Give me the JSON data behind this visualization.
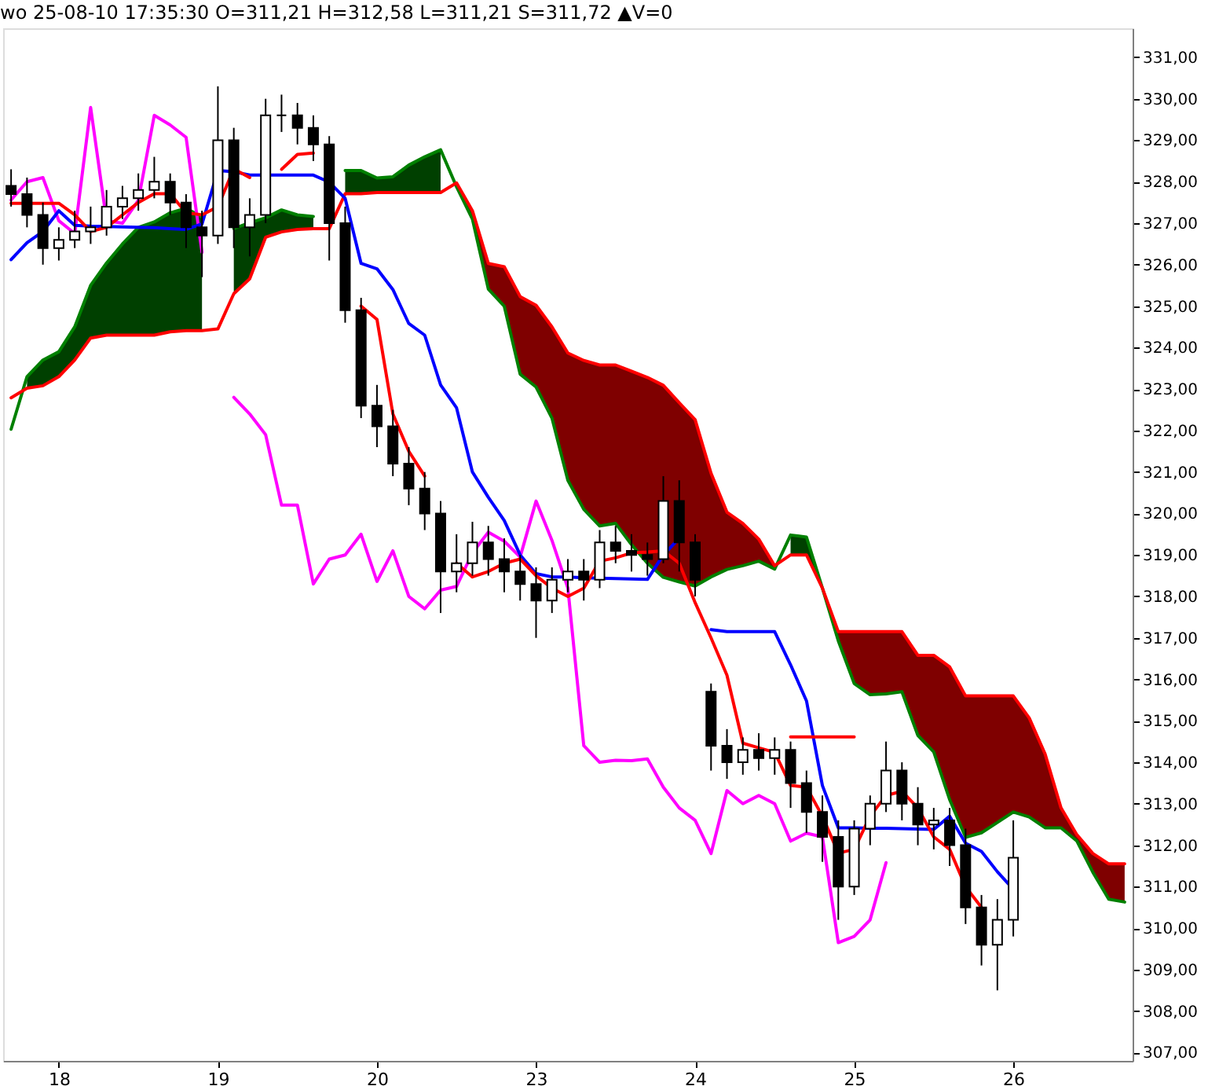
{
  "chart_data": {
    "type": "candlestick",
    "title": "wo 25-08-10 17:35:30  O=311,21  H=312,58  L=311,21  S=311,72 ▲V=0",
    "categories": [
      null,
      null,
      null,
      "18",
      null,
      null,
      null,
      null,
      null,
      null,
      null,
      null,
      null,
      "19",
      null,
      null,
      null,
      null,
      null,
      null,
      null,
      null,
      null,
      "20",
      null,
      null,
      null,
      null,
      null,
      null,
      null,
      null,
      null,
      "23",
      null,
      null,
      null,
      null,
      null,
      null,
      null,
      null,
      null,
      "24",
      null,
      null,
      null,
      null,
      null,
      null,
      null,
      null,
      null,
      "25",
      null,
      null,
      null,
      null,
      null,
      null,
      null,
      null,
      null,
      "26",
      null,
      null,
      null,
      null,
      null,
      null,
      null
    ],
    "ylim": [
      306.8,
      331.7
    ],
    "yticks": [
      {
        "value": 307,
        "label": "307,00"
      },
      {
        "value": 308,
        "label": "308,00"
      },
      {
        "value": 309,
        "label": "309,00"
      },
      {
        "value": 310,
        "label": "310,00"
      },
      {
        "value": 311,
        "label": "311,00"
      },
      {
        "value": 312,
        "label": "312,00"
      },
      {
        "value": 313,
        "label": "313,00"
      },
      {
        "value": 314,
        "label": "314,00"
      },
      {
        "value": 315,
        "label": "315,00"
      },
      {
        "value": 316,
        "label": "316,00"
      },
      {
        "value": 317,
        "label": "317,00"
      },
      {
        "value": 318,
        "label": "318,00"
      },
      {
        "value": 319,
        "label": "319,00"
      },
      {
        "value": 320,
        "label": "320,00"
      },
      {
        "value": 321,
        "label": "321,00"
      },
      {
        "value": 322,
        "label": "322,00"
      },
      {
        "value": 323,
        "label": "323,00"
      },
      {
        "value": 324,
        "label": "324,00"
      },
      {
        "value": 325,
        "label": "325,00"
      },
      {
        "value": 326,
        "label": "326,00"
      },
      {
        "value": 327,
        "label": "327,00"
      },
      {
        "value": 328,
        "label": "328,00"
      },
      {
        "value": 329,
        "label": "329,00"
      },
      {
        "value": 330,
        "label": "330,00"
      },
      {
        "value": 331,
        "label": "331,00"
      }
    ],
    "ohlc": [
      [
        327.9,
        328.3,
        327.4,
        327.7
      ],
      [
        327.7,
        328.1,
        326.9,
        327.2
      ],
      [
        327.2,
        327.5,
        326.0,
        326.4
      ],
      [
        326.4,
        326.9,
        326.1,
        326.6
      ],
      [
        326.6,
        327.3,
        326.4,
        326.8
      ],
      [
        326.8,
        327.4,
        326.5,
        326.9
      ],
      [
        326.9,
        327.8,
        326.7,
        327.4
      ],
      [
        327.4,
        327.9,
        327.1,
        327.6
      ],
      [
        327.6,
        328.2,
        327.3,
        327.8
      ],
      [
        327.8,
        328.6,
        327.6,
        328.0
      ],
      [
        328.0,
        328.2,
        327.2,
        327.5
      ],
      [
        327.5,
        327.7,
        326.4,
        326.9
      ],
      [
        326.9,
        327.3,
        325.7,
        326.7
      ],
      [
        326.7,
        330.3,
        326.5,
        329.0
      ],
      [
        329.0,
        329.3,
        326.4,
        326.9
      ],
      [
        326.9,
        327.6,
        326.2,
        327.2
      ],
      [
        327.2,
        330.0,
        327.0,
        329.6
      ],
      [
        329.6,
        330.1,
        329.2,
        329.6
      ],
      [
        329.6,
        329.9,
        328.9,
        329.3
      ],
      [
        329.3,
        329.6,
        328.5,
        328.9
      ],
      [
        328.9,
        329.1,
        326.1,
        327.0
      ],
      [
        327.0,
        327.4,
        324.6,
        324.9
      ],
      [
        324.9,
        325.2,
        322.3,
        322.6
      ],
      [
        322.6,
        323.1,
        321.6,
        322.1
      ],
      [
        322.1,
        322.5,
        320.9,
        321.2
      ],
      [
        321.2,
        321.6,
        320.2,
        320.6
      ],
      [
        320.6,
        321.0,
        319.6,
        320.0
      ],
      [
        320.0,
        320.3,
        317.6,
        318.6
      ],
      [
        318.6,
        319.5,
        318.1,
        318.8
      ],
      [
        318.8,
        319.8,
        318.5,
        319.3
      ],
      [
        319.3,
        319.7,
        318.5,
        318.9
      ],
      [
        318.9,
        319.4,
        318.1,
        318.6
      ],
      [
        318.6,
        319.0,
        317.9,
        318.3
      ],
      [
        318.3,
        318.7,
        317.0,
        317.9
      ],
      [
        317.9,
        318.7,
        317.6,
        318.4
      ],
      [
        318.4,
        318.9,
        318.1,
        318.6
      ],
      [
        318.6,
        318.9,
        317.9,
        318.4
      ],
      [
        318.4,
        319.6,
        318.2,
        319.3
      ],
      [
        319.3,
        319.7,
        318.8,
        319.1
      ],
      [
        319.1,
        319.5,
        318.6,
        319.0
      ],
      [
        319.0,
        319.3,
        318.5,
        318.9
      ],
      [
        318.9,
        320.9,
        318.8,
        320.3
      ],
      [
        320.3,
        320.8,
        318.6,
        319.3
      ],
      [
        319.3,
        319.5,
        318.0,
        318.4
      ],
      [
        315.7,
        315.9,
        313.8,
        314.4
      ],
      [
        314.4,
        314.8,
        313.6,
        314.0
      ],
      [
        314.0,
        314.6,
        313.7,
        314.3
      ],
      [
        314.3,
        314.7,
        313.8,
        314.1
      ],
      [
        314.1,
        314.6,
        313.7,
        314.3
      ],
      [
        314.3,
        314.5,
        312.9,
        313.5
      ],
      [
        313.5,
        313.8,
        312.3,
        312.8
      ],
      [
        312.8,
        313.2,
        311.6,
        312.2
      ],
      [
        312.2,
        312.6,
        310.2,
        311.0
      ],
      [
        311.0,
        312.6,
        310.8,
        312.4
      ],
      [
        312.4,
        313.2,
        312.0,
        313.0
      ],
      [
        313.0,
        314.5,
        312.8,
        313.8
      ],
      [
        313.8,
        314.0,
        312.6,
        313.0
      ],
      [
        313.0,
        313.4,
        312.0,
        312.5
      ],
      [
        312.5,
        312.9,
        311.9,
        312.6
      ],
      [
        312.6,
        312.9,
        311.5,
        312.0
      ],
      [
        312.0,
        312.4,
        310.1,
        310.5
      ],
      [
        310.5,
        310.8,
        309.1,
        309.6
      ],
      [
        309.6,
        310.7,
        308.5,
        310.2
      ],
      [
        310.2,
        312.6,
        309.8,
        311.7
      ],
      null,
      null,
      null,
      null,
      null,
      null,
      null
    ],
    "series": [
      {
        "type": "line",
        "color": "#008000",
        "values": [
          322.03,
          323.3,
          323.7,
          323.9,
          324.5,
          325.5,
          326.04,
          326.5,
          326.9,
          327.03,
          327.25,
          327.36,
          327.15,
          null,
          326.87,
          327.01,
          327.13,
          327.32,
          327.2,
          327.16,
          null,
          328.27,
          328.27,
          328.09,
          328.12,
          328.4,
          328.6,
          328.77,
          327.88,
          327.1,
          325.41,
          325.0,
          323.36,
          323.05,
          322.3,
          320.8,
          320.1,
          319.7,
          319.76,
          319.25,
          318.8,
          318.46,
          318.35,
          318.25,
          318.47,
          318.65,
          318.74,
          318.85,
          318.66,
          319.48,
          319.43,
          318.2,
          316.93,
          315.9,
          315.63,
          315.65,
          315.7,
          314.65,
          314.25,
          313.1,
          312.19,
          312.3,
          312.55,
          312.8,
          312.68,
          312.42,
          312.42,
          312.1,
          311.35,
          310.7,
          310.63
        ],
        "upper": [
          null,
          323.3,
          323.7,
          323.9,
          324.5,
          325.5,
          326.04,
          326.5,
          326.9,
          327.03,
          327.25,
          327.36,
          327.15,
          null,
          326.87,
          327.01,
          327.13,
          327.32,
          327.2,
          327.16,
          null,
          328.27,
          328.27,
          328.09,
          328.12,
          328.4,
          328.6,
          328.77,
          null,
          null,
          null,
          null,
          null,
          null,
          null,
          null,
          null,
          null,
          null,
          null,
          null,
          null,
          null,
          null,
          null,
          null,
          null,
          null,
          null,
          319.48,
          319.43,
          318.2,
          null,
          null,
          null,
          null,
          null,
          null,
          null,
          null,
          null,
          null,
          null,
          null,
          null,
          null,
          null,
          null,
          null,
          null,
          null
        ],
        "lower": [
          null,
          323.02,
          323.08,
          323.3,
          323.7,
          324.23,
          324.3,
          324.3,
          324.3,
          324.3,
          324.38,
          324.41,
          324.41,
          null,
          325.3,
          325.66,
          326.66,
          326.79,
          326.85,
          326.87,
          null,
          327.71,
          327.71,
          327.74,
          327.74,
          327.74,
          327.74,
          327.74,
          null,
          null,
          null,
          null,
          null,
          null,
          null,
          null,
          null,
          null,
          null,
          null,
          null,
          null,
          null,
          null,
          null,
          null,
          null,
          null,
          null,
          319.0,
          319.0,
          318.2,
          null,
          null,
          null,
          null,
          null,
          null,
          null,
          null,
          null,
          null,
          null,
          null,
          null,
          null,
          null,
          null,
          null,
          null,
          null
        ]
      },
      {
        "type": "line",
        "color": "#ff0000",
        "values": [
          322.79,
          323.02,
          323.08,
          323.3,
          323.7,
          324.23,
          324.3,
          324.3,
          324.3,
          324.3,
          324.38,
          324.41,
          324.41,
          324.45,
          325.3,
          325.66,
          326.66,
          326.79,
          326.85,
          326.87,
          326.87,
          327.71,
          327.71,
          327.74,
          327.74,
          327.74,
          327.74,
          327.74,
          327.97,
          327.3,
          326.03,
          325.95,
          325.23,
          325.02,
          324.5,
          323.87,
          323.69,
          323.58,
          323.58,
          323.43,
          323.28,
          323.09,
          322.67,
          322.26,
          320.97,
          320.03,
          319.76,
          319.38,
          318.74,
          319.0,
          319.0,
          318.2,
          317.15,
          317.15,
          317.15,
          317.15,
          317.15,
          316.58,
          316.58,
          316.3,
          315.6,
          315.6,
          315.6,
          315.6,
          315.07,
          314.2,
          312.9,
          312.25,
          311.8,
          311.55,
          311.55
        ],
        "upper": [
          null,
          null,
          null,
          null,
          null,
          null,
          null,
          null,
          null,
          null,
          null,
          null,
          null,
          null,
          null,
          null,
          null,
          null,
          null,
          null,
          null,
          null,
          null,
          null,
          null,
          null,
          null,
          null,
          327.97,
          327.3,
          326.03,
          325.95,
          325.23,
          325.02,
          324.5,
          323.87,
          323.69,
          323.58,
          323.58,
          323.43,
          323.28,
          323.09,
          322.67,
          322.26,
          320.97,
          320.03,
          319.76,
          319.38,
          318.74,
          null,
          null,
          318.2,
          317.15,
          317.15,
          317.15,
          317.15,
          317.15,
          316.58,
          316.58,
          316.3,
          315.6,
          315.6,
          315.6,
          315.6,
          315.07,
          314.2,
          312.9,
          312.25,
          311.8,
          311.55,
          311.55
        ],
        "lower": [
          null,
          null,
          null,
          null,
          null,
          null,
          null,
          null,
          null,
          null,
          null,
          null,
          null,
          null,
          null,
          null,
          null,
          null,
          null,
          null,
          null,
          null,
          null,
          null,
          null,
          null,
          null,
          null,
          327.88,
          327.1,
          325.41,
          325.0,
          323.36,
          323.05,
          322.3,
          320.8,
          320.1,
          319.7,
          319.76,
          319.25,
          318.8,
          318.46,
          318.35,
          318.25,
          318.47,
          318.65,
          318.74,
          318.85,
          318.66,
          null,
          null,
          318.2,
          316.93,
          315.9,
          315.63,
          315.65,
          315.7,
          314.65,
          314.25,
          313.1,
          312.19,
          312.3,
          312.55,
          312.8,
          312.68,
          312.42,
          312.42,
          312.1,
          311.35,
          310.7,
          310.63
        ]
      },
      {
        "type": "line",
        "color": "#ff00ff",
        "values": [
          327.56,
          328.0,
          328.1,
          327.06,
          326.75,
          329.79,
          327.06,
          327.0,
          327.55,
          329.6,
          329.37,
          329.07,
          326.3,
          null,
          322.8,
          322.4,
          321.9,
          320.2,
          320.2,
          318.3,
          318.9,
          319.0,
          319.5,
          318.36,
          319.1,
          318.0,
          317.7,
          318.15,
          318.24,
          319.05,
          319.55,
          319.33,
          318.95,
          320.3,
          319.35,
          318.2,
          314.4,
          314.0,
          314.05,
          314.04,
          314.08,
          313.4,
          312.9,
          312.6,
          311.8,
          313.32,
          313.0,
          313.2,
          313.0,
          312.1,
          312.29,
          312.2,
          309.65,
          309.8,
          310.2,
          311.58,
          null,
          null,
          null,
          null,
          null,
          null,
          null,
          null,
          null,
          null,
          null,
          null,
          null,
          null,
          null
        ]
      },
      {
        "type": "line",
        "color": "#0000ff",
        "values": [
          326.12,
          326.53,
          326.8,
          327.3,
          326.95,
          326.93,
          326.92,
          326.91,
          326.9,
          326.89,
          326.87,
          326.85,
          326.98,
          328.27,
          328.24,
          328.16,
          328.16,
          328.16,
          328.16,
          328.16,
          327.99,
          327.6,
          326.03,
          325.9,
          325.4,
          324.58,
          324.3,
          323.1,
          322.55,
          321.0,
          320.39,
          319.83,
          319.0,
          318.55,
          318.47,
          318.47,
          318.45,
          318.44,
          318.43,
          318.42,
          318.41,
          319.0,
          319.4,
          null,
          317.2,
          317.15,
          317.15,
          317.15,
          317.15,
          316.35,
          315.48,
          313.44,
          312.42,
          312.42,
          312.41,
          312.41,
          312.4,
          312.39,
          312.38,
          312.7,
          312.05,
          311.85,
          311.36,
          310.94,
          null,
          null,
          null,
          null,
          null,
          null,
          null
        ]
      },
      {
        "type": "line",
        "color": "#ff0000",
        "values": [
          327.48,
          327.48,
          327.48,
          327.48,
          327.2,
          326.8,
          326.9,
          327.2,
          327.5,
          327.71,
          327.71,
          327.25,
          327.2,
          327.4,
          328.31,
          328.1,
          null,
          328.3,
          328.66,
          328.69,
          null,
          null,
          325.0,
          324.68,
          322.4,
          321.5,
          320.9,
          null,
          318.8,
          318.47,
          318.6,
          318.8,
          318.9,
          318.5,
          318.2,
          318.0,
          318.2,
          318.85,
          318.93,
          319.05,
          319.07,
          319.1,
          318.8,
          317.85,
          317.0,
          316.1,
          314.46,
          314.35,
          314.24,
          313.44,
          313.4,
          312.7,
          311.81,
          311.9,
          312.7,
          313.2,
          313.3,
          312.9,
          312.2,
          311.9,
          311.0,
          310.5,
          null,
          null,
          null,
          null,
          null,
          null,
          null,
          null,
          null
        ]
      },
      {
        "type": "line",
        "color": "#ff0000",
        "values": [
          null,
          null,
          null,
          null,
          null,
          null,
          null,
          null,
          null,
          null,
          null,
          null,
          null,
          null,
          null,
          null,
          null,
          null,
          null,
          null,
          null,
          null,
          null,
          null,
          null,
          null,
          null,
          null,
          null,
          null,
          null,
          null,
          null,
          null,
          null,
          null,
          null,
          null,
          null,
          null,
          null,
          null,
          null,
          null,
          null,
          null,
          null,
          null,
          null,
          314.61,
          314.61,
          314.61,
          314.61,
          314.61,
          null,
          null,
          null,
          null,
          null,
          null,
          null,
          null,
          null,
          null,
          null,
          null,
          null,
          null,
          null,
          null,
          null
        ]
      }
    ]
  }
}
